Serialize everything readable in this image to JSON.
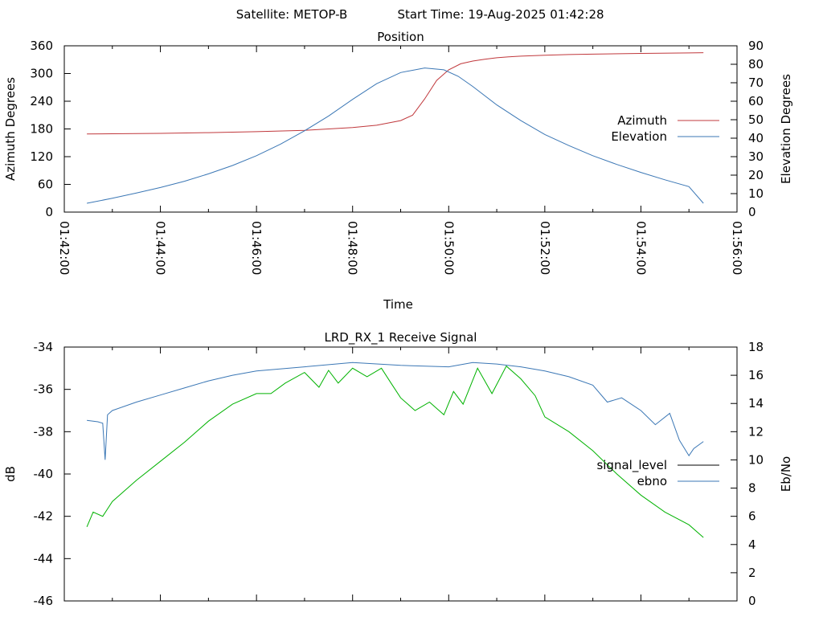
{
  "header": {
    "satellite": "Satellite: METOP-B",
    "start_time": "Start Time: 19-Aug-2025 01:42:28"
  },
  "colors": {
    "azimuth": "#c0383c",
    "elevation": "#3b77b5",
    "signal_level": "#000000",
    "signal_trace": "#00b200",
    "ebno": "#3b77b5"
  },
  "chart_data": [
    {
      "type": "line",
      "title": "Position",
      "xlabel": "Time",
      "ylabel_left": "Azimuth Degrees",
      "ylabel_right": "Elevation Degrees",
      "x_ticks": [
        "01:42:00",
        "01:44:00",
        "01:46:00",
        "01:48:00",
        "01:50:00",
        "01:52:00",
        "01:54:00",
        "01:56:00"
      ],
      "y_left_ticks": [
        "0",
        "60",
        "120",
        "180",
        "240",
        "300",
        "360"
      ],
      "y_right_ticks": [
        "0",
        "10",
        "20",
        "30",
        "40",
        "50",
        "60",
        "70",
        "80",
        "90"
      ],
      "xlim": [
        0,
        14
      ],
      "ylim_left": [
        0,
        360
      ],
      "ylim_right": [
        0,
        90
      ],
      "legend_position": "right",
      "series": [
        {
          "name": "Azimuth",
          "axis": "left",
          "x": [
            0.47,
            1,
            2,
            3,
            4,
            5,
            5.5,
            6,
            6.5,
            7,
            7.25,
            7.5,
            7.75,
            8,
            8.25,
            8.5,
            8.75,
            9,
            9.25,
            9.5,
            10,
            10.5,
            11,
            12,
            13,
            13.3
          ],
          "y": [
            169,
            169.5,
            170.5,
            172,
            174,
            177,
            180,
            183,
            188,
            198,
            210,
            245,
            285,
            308,
            321,
            327,
            331,
            334,
            336,
            337.5,
            339.5,
            341,
            342,
            343.5,
            344.5,
            345
          ]
        },
        {
          "name": "Elevation",
          "axis": "right",
          "x": [
            0.47,
            1,
            1.5,
            2,
            2.5,
            3,
            3.5,
            4,
            4.5,
            5,
            5.5,
            6,
            6.5,
            7,
            7.5,
            7.9,
            8.2,
            8.5,
            9,
            9.5,
            10,
            10.5,
            11,
            11.5,
            12,
            12.5,
            13,
            13.3
          ],
          "y": [
            4.8,
            7.5,
            10.3,
            13.3,
            16.7,
            20.7,
            25.2,
            30.5,
            36.8,
            44,
            52,
            61,
            69.5,
            75.5,
            78,
            77,
            73.5,
            68,
            58,
            49.5,
            42,
            36,
            30.5,
            25.8,
            21.5,
            17.5,
            13.8,
            4.8
          ]
        }
      ]
    },
    {
      "type": "line",
      "title": "LRD_RX_1 Receive Signal",
      "xlabel": "",
      "ylabel_left": "dB",
      "ylabel_right": "Eb/No",
      "y_left_ticks": [
        "-46",
        "-44",
        "-42",
        "-40",
        "-38",
        "-36",
        "-34"
      ],
      "y_right_ticks": [
        "0",
        "2",
        "4",
        "6",
        "8",
        "10",
        "12",
        "14",
        "16",
        "18"
      ],
      "xlim": [
        0,
        14
      ],
      "ylim_left": [
        -46,
        -34
      ],
      "ylim_right": [
        0,
        18
      ],
      "legend_position": "right",
      "series": [
        {
          "name": "signal_level",
          "axis": "left",
          "x": [
            0.47,
            0.6,
            0.8,
            1,
            1.5,
            2,
            2.5,
            3,
            3.5,
            4,
            4.3,
            4.6,
            5,
            5.3,
            5.5,
            5.7,
            6,
            6.3,
            6.6,
            6.8,
            7,
            7.3,
            7.6,
            7.9,
            8.1,
            8.3,
            8.6,
            8.9,
            9.2,
            9.5,
            9.8,
            10,
            10.5,
            11,
            11.5,
            12,
            12.5,
            13,
            13.3
          ],
          "y": [
            -42.5,
            -41.8,
            -42,
            -41.3,
            -40.3,
            -39.4,
            -38.5,
            -37.5,
            -36.7,
            -36.2,
            -36.2,
            -35.7,
            -35.2,
            -35.9,
            -35.1,
            -35.7,
            -35,
            -35.4,
            -35,
            -35.7,
            -36.4,
            -37,
            -36.6,
            -37.2,
            -36.1,
            -36.7,
            -35,
            -36.2,
            -34.9,
            -35.5,
            -36.3,
            -37.3,
            -38,
            -38.9,
            -40,
            -41,
            -41.8,
            -42.4,
            -43
          ]
        },
        {
          "name": "ebno",
          "axis": "right",
          "x": [
            0.47,
            0.7,
            0.8,
            0.85,
            0.9,
            1,
            1.5,
            2,
            2.5,
            3,
            3.5,
            4,
            5,
            6,
            7,
            8,
            8.5,
            9,
            9.5,
            10,
            10.5,
            11,
            11.3,
            11.6,
            12,
            12.3,
            12.6,
            12.8,
            13,
            13.1,
            13.3
          ],
          "y": [
            12.8,
            12.7,
            12.6,
            10,
            13.2,
            13.5,
            14.1,
            14.6,
            15.1,
            15.6,
            16,
            16.3,
            16.6,
            16.9,
            16.7,
            16.6,
            16.9,
            16.8,
            16.6,
            16.3,
            15.9,
            15.3,
            14.1,
            14.4,
            13.5,
            12.5,
            13.3,
            11.4,
            10.3,
            10.8,
            11.3
          ]
        }
      ]
    }
  ]
}
